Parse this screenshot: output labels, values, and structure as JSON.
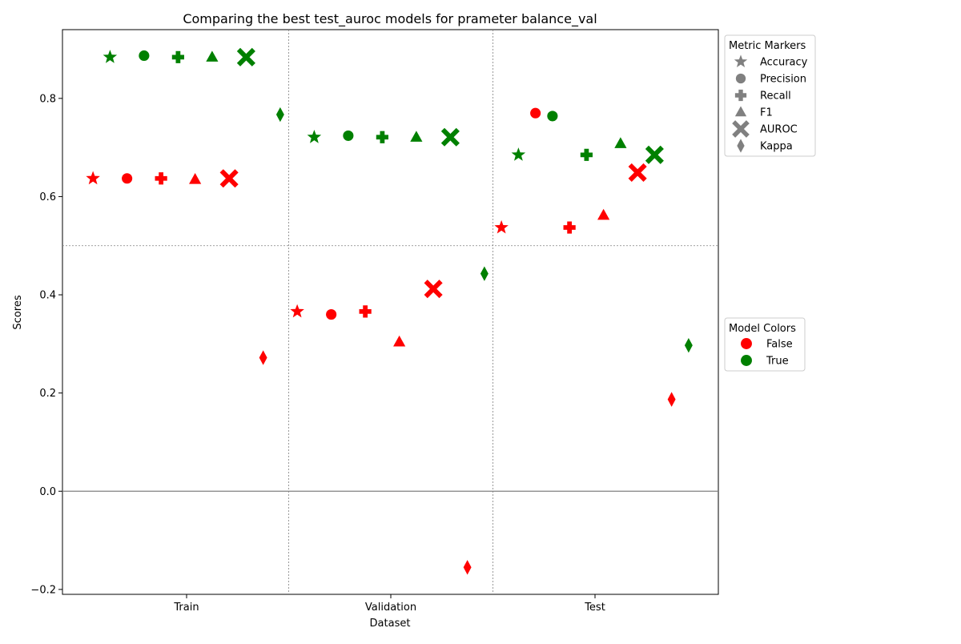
{
  "chart_data": {
    "type": "scatter",
    "title": "Comparing the best test_auroc models for prameter balance_val",
    "xlabel": "Dataset",
    "ylabel": "Scores",
    "categories": [
      "Train",
      "Validation",
      "Test"
    ],
    "ylim": [
      -0.21,
      0.94
    ],
    "yticks": [
      -0.2,
      0.0,
      0.2,
      0.4,
      0.6,
      0.8
    ],
    "ytick_labels": [
      "−0.2",
      "0.0",
      "0.2",
      "0.4",
      "0.6",
      "0.8"
    ],
    "grid": "dotted lines at category boundaries and y = 0.5",
    "zero_line": true,
    "metrics": [
      "Accuracy",
      "Precision",
      "Recall",
      "F1",
      "AUROC",
      "Kappa"
    ],
    "metric_markers": [
      "star",
      "circle",
      "plus",
      "triangle",
      "x",
      "diamond"
    ],
    "series": [
      {
        "name": "False",
        "color": "#ff0000",
        "values": [
          [
            0.637,
            0.637,
            0.637,
            0.635,
            0.637,
            0.272
          ],
          [
            0.366,
            0.36,
            0.366,
            0.304,
            0.412,
            -0.155
          ],
          [
            0.537,
            0.77,
            0.537,
            0.562,
            0.649,
            0.187
          ]
        ]
      },
      {
        "name": "True",
        "color": "#008000",
        "values": [
          [
            0.884,
            0.887,
            0.884,
            0.884,
            0.884,
            0.767
          ],
          [
            0.721,
            0.724,
            0.721,
            0.721,
            0.721,
            0.443
          ],
          [
            0.685,
            0.764,
            0.685,
            0.708,
            0.685,
            0.297
          ]
        ]
      }
    ],
    "legends": {
      "metric": {
        "title": "Metric Markers",
        "placement": "outside right top",
        "color": "#808080"
      },
      "model": {
        "title": "Model Colors",
        "placement": "outside right middle"
      }
    }
  }
}
